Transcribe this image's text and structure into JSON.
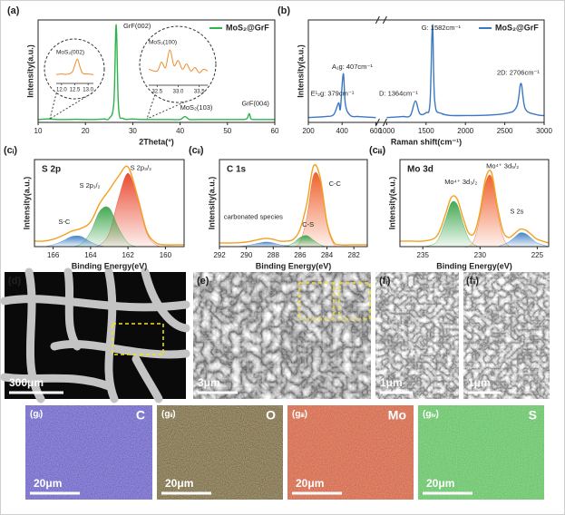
{
  "chart_data": [
    {
      "type": "line",
      "panel_label": "(a)",
      "x_label": "2Theta(°)",
      "y_label": "Intensity(a.u.)",
      "x": [
        10,
        12,
        14,
        16,
        18,
        20,
        22,
        24,
        25,
        26,
        26.5,
        27,
        28,
        30,
        32,
        34,
        36,
        38,
        40,
        41,
        42,
        44,
        46,
        48,
        50,
        52,
        54,
        54.6,
        55,
        56,
        58,
        60
      ],
      "xlim": [
        10,
        60
      ],
      "xticks": [
        10,
        20,
        30,
        40,
        50,
        60
      ],
      "ylim": [
        0,
        105
      ],
      "legend": "upper right",
      "series": [
        {
          "name": "MoS₂@GrF",
          "color": "#2db34a",
          "values": [
            3,
            3.5,
            3,
            3,
            3.2,
            3,
            3,
            3.5,
            4,
            20,
            100,
            15,
            4,
            3.5,
            3,
            3,
            3,
            3,
            3,
            6,
            3,
            3,
            3,
            3,
            3,
            3,
            3.5,
            9,
            3.5,
            3,
            3,
            3
          ]
        }
      ],
      "annotations": [
        {
          "text": "GrF(002)",
          "color": "#222"
        },
        {
          "text": "MoS₂(103)",
          "color": "#222"
        },
        {
          "text": "GrF(004)",
          "color": "#222"
        }
      ],
      "insets": [
        {
          "label": "MoS₂(002)",
          "color": "#f08a2c",
          "xlim": [
            11.8,
            13.2
          ],
          "ylim": [
            0,
            100
          ],
          "xticks": [
            {
              "value": 12,
              "label": "12.0"
            },
            12.5,
            {
              "value": 13,
              "label": "13.0"
            }
          ],
          "x": [
            11.8,
            12,
            12.2,
            12.4,
            12.5,
            12.6,
            12.7,
            12.8,
            13,
            13.2
          ],
          "values": [
            30,
            32,
            31,
            40,
            70,
            95,
            60,
            35,
            32,
            30
          ]
        },
        {
          "label": "MoS₂(100)",
          "color": "#f08a2c",
          "xlim": [
            32.3,
            33.7
          ],
          "ylim": [
            0,
            100
          ],
          "xticks": [
            32.5,
            {
              "value": 33,
              "label": "33.0"
            },
            33.5
          ],
          "x": [
            32.3,
            32.5,
            32.6,
            32.7,
            32.8,
            32.9,
            33,
            33.1,
            33.2,
            33.3,
            33.4,
            33.5,
            33.6,
            33.7
          ],
          "values": [
            40,
            35,
            60,
            45,
            95,
            50,
            65,
            40,
            55,
            35,
            45,
            30,
            40,
            35
          ]
        }
      ]
    },
    {
      "type": "line",
      "panel_label": "(b)",
      "x_label": "Raman shift(cm⁻¹)",
      "y_label": "Intensity(a.u.)",
      "x": [
        200,
        300,
        350,
        379,
        390,
        407,
        420,
        450,
        500,
        600,
        800,
        1000,
        1200,
        1300,
        1364,
        1420,
        1500,
        1550,
        1582,
        1610,
        1700,
        2000,
        2500,
        2650,
        2706,
        2760,
        2900,
        3000
      ],
      "xlim": [
        200,
        3000
      ],
      "axis_break": [
        600,
        1000
      ],
      "xticks": [
        200,
        400,
        600,
        1000,
        1500,
        2000,
        2500,
        3000
      ],
      "ylim": [
        0,
        105
      ],
      "legend": "upper right",
      "series": [
        {
          "name": "MoS₂@GrF",
          "color": "#3a78c2",
          "values": [
            5,
            6,
            8,
            20,
            14,
            50,
            18,
            7,
            6,
            5,
            null,
            5,
            6,
            7,
            22,
            9,
            10,
            20,
            100,
            22,
            9,
            7,
            9,
            16,
            40,
            14,
            8,
            7
          ]
        }
      ],
      "annotations": [
        {
          "text": "E¹₂g: 379cm⁻¹",
          "color": "#222"
        },
        {
          "text": "A₁g: 407cm⁻¹",
          "color": "#222"
        },
        {
          "text": "D: 1364cm⁻¹",
          "color": "#222"
        },
        {
          "text": "G: 1582cm⁻¹",
          "color": "#222"
        },
        {
          "text": "2D: 2706cm⁻¹",
          "color": "#222"
        }
      ]
    },
    {
      "type": "line",
      "panel_label": "(cᵢ)",
      "title": "S 2p",
      "x_label": "Binding Energy(eV)",
      "y_label": "Intensity(a.u.)",
      "x": [
        167,
        166.5,
        166,
        165.5,
        165,
        164.5,
        164,
        163.5,
        163,
        162.5,
        162,
        161.5,
        161,
        160.5,
        160,
        159.5,
        159
      ],
      "xlim": [
        167,
        159
      ],
      "xticks": [
        166,
        164,
        162,
        160
      ],
      "ylim": [
        0,
        95
      ],
      "series": [
        {
          "color": "#e8442a",
          "fill": true,
          "values": [
            0,
            0,
            0,
            0,
            0,
            0,
            0,
            2,
            15,
            53,
            80,
            53,
            15,
            2,
            0,
            0,
            0
          ]
        },
        {
          "color": "#3aa34a",
          "fill": true,
          "values": [
            0,
            0,
            0,
            0,
            0,
            3,
            16,
            39,
            42,
            20,
            4,
            0,
            0,
            0,
            0,
            0,
            0
          ]
        },
        {
          "color": "#3a7fc4",
          "fill": true,
          "values": [
            0,
            0,
            2,
            6,
            11,
            11,
            5,
            1,
            0,
            0,
            0,
            0,
            0,
            0,
            0,
            0,
            0
          ]
        },
        {
          "color": "#f5a020",
          "values": [
            6,
            6,
            8,
            12,
            17,
            20,
            27,
            47.5,
            62,
            77,
            87,
            55.5,
            17,
            4,
            2,
            2,
            2
          ]
        }
      ],
      "annotations": [
        {
          "text": "S 2p₃/₂",
          "color": "#e8642a"
        },
        {
          "text": "S 2p₁/₂",
          "color": "#3aa34a"
        },
        {
          "text": "S-C",
          "color": "#3a7fc4"
        }
      ]
    },
    {
      "type": "line",
      "panel_label": "(cᵢᵢ)",
      "title": "C 1s",
      "x_label": "Binding Energy(eV)",
      "y_label": "Intensity(a.u.)",
      "x": [
        292,
        291,
        290,
        289,
        288.5,
        288,
        287.5,
        287,
        286.5,
        286,
        285.5,
        285,
        284.5,
        284,
        283.5,
        283,
        282,
        281
      ],
      "xlim": [
        292,
        281
      ],
      "xticks": [
        292,
        290,
        288,
        286,
        284,
        282
      ],
      "ylim": [
        0,
        95
      ],
      "series": [
        {
          "color": "#ee5a24",
          "fill": true,
          "values": [
            0,
            0,
            0,
            0,
            0,
            0,
            0,
            0,
            0,
            5,
            32,
            78,
            71,
            24,
            3,
            0,
            0,
            0
          ]
        },
        {
          "color": "#3aa34a",
          "fill": true,
          "values": [
            0,
            0,
            0,
            0,
            0,
            0,
            0,
            1,
            4,
            10,
            12,
            7,
            2,
            0,
            0,
            0,
            0,
            0
          ]
        },
        {
          "color": "#3a7fc4",
          "fill": true,
          "values": [
            0,
            0,
            1,
            4,
            5,
            4,
            2,
            1,
            0,
            0,
            0,
            0,
            0,
            0,
            0,
            0,
            0,
            0
          ]
        },
        {
          "color": "#f5a020",
          "values": [
            4,
            4,
            5,
            8,
            9,
            8,
            6,
            6,
            8,
            19,
            47,
            88,
            75,
            26,
            5,
            2,
            2,
            2
          ]
        }
      ],
      "annotations": [
        {
          "text": "C-C",
          "color": "#e8642a"
        },
        {
          "text": "C-S",
          "color": "#3aa34a"
        },
        {
          "text": "carbonated species",
          "color": "#3a7fc4"
        }
      ]
    },
    {
      "type": "line",
      "panel_label": "(cᵢᵢᵢ)",
      "title": "Mo 3d",
      "x_label": "Binding Energy(eV)",
      "y_label": "Intensity(a.u.)",
      "x": [
        237,
        236,
        235,
        234,
        233.5,
        233,
        232.5,
        232,
        231.5,
        231,
        230.5,
        230,
        229.5,
        229,
        228.5,
        228,
        227.5,
        227,
        226.5,
        226,
        225.5,
        225,
        224
      ],
      "xlim": [
        237,
        224
      ],
      "xticks": [
        235,
        230,
        225
      ],
      "ylim": [
        0,
        95
      ],
      "series": [
        {
          "color": "#ee5a24",
          "fill": true,
          "values": [
            0,
            0,
            0,
            0,
            0,
            0,
            0,
            0,
            0,
            0,
            8,
            33,
            70,
            76,
            40,
            11,
            1,
            0,
            0,
            0,
            0,
            0,
            0
          ]
        },
        {
          "color": "#3aa34a",
          "fill": true,
          "values": [
            0,
            0,
            0,
            3,
            12,
            30,
            48,
            46,
            26,
            9,
            2,
            0,
            0,
            0,
            0,
            0,
            0,
            0,
            0,
            0,
            0,
            0,
            0
          ]
        },
        {
          "color": "#3a7fc4",
          "fill": true,
          "values": [
            0,
            0,
            0,
            0,
            0,
            0,
            0,
            0,
            0,
            0,
            0,
            0,
            0,
            0,
            0,
            2,
            5,
            10,
            15,
            14,
            9,
            4,
            0
          ]
        },
        {
          "color": "#f5a020",
          "values": [
            6,
            6,
            6,
            9,
            18,
            36,
            54,
            52,
            32,
            15,
            15,
            38,
            75,
            81,
            45,
            17,
            10,
            14,
            19,
            18,
            13,
            8,
            4
          ]
        }
      ],
      "annotations": [
        {
          "text": "Mo⁴⁺ 3d₅/₂",
          "color": "#e8642a"
        },
        {
          "text": "Mo⁴⁺ 3d₃/₂",
          "color": "#3aa34a"
        },
        {
          "text": "S 2s",
          "color": "#3a7fc4"
        }
      ]
    }
  ],
  "images": [
    {
      "label": "(d)",
      "scale_bar": "300μm"
    },
    {
      "label": "(e)",
      "scale_bar": "3μm"
    },
    {
      "label": "(fᵢ)",
      "scale_bar": "1μm"
    },
    {
      "label": "(fᵢᵢ)",
      "scale_bar": "1μm"
    }
  ],
  "maps": [
    {
      "label": "(gᵢ)",
      "element": "C",
      "scale_bar": "20μm"
    },
    {
      "label": "(gᵢᵢ)",
      "element": "O",
      "scale_bar": "20μm"
    },
    {
      "label": "(gᵢᵢᵢ)",
      "element": "Mo",
      "scale_bar": "20μm"
    },
    {
      "label": "(gᵢᵥ)",
      "element": "S",
      "scale_bar": "20μm"
    }
  ]
}
